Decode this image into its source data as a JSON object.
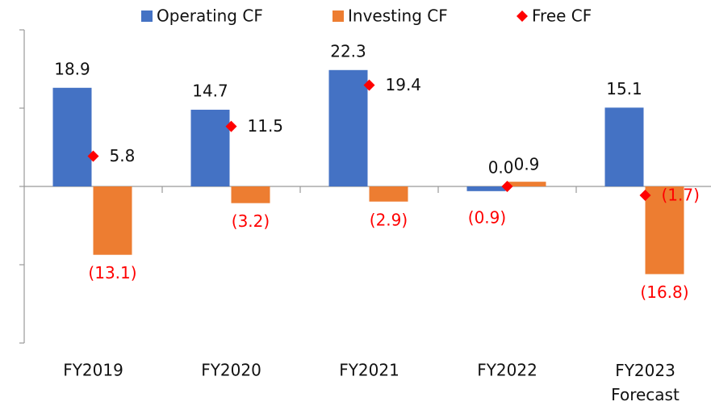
{
  "chart_data": {
    "type": "bar",
    "categories": [
      "FY2019",
      "FY2020",
      "FY2021",
      "FY2022",
      "FY2023\nForecast"
    ],
    "series": [
      {
        "name": "Operating CF",
        "color": "#4472c4",
        "values": [
          18.9,
          14.7,
          22.3,
          -0.9,
          15.1
        ],
        "value_labels": [
          "18.9",
          "14.7",
          "22.3",
          "(0.9)",
          "15.1"
        ]
      },
      {
        "name": "Investing CF",
        "color": "#ed7d31",
        "values": [
          -13.1,
          -3.2,
          -2.9,
          0.9,
          -16.8
        ],
        "value_labels": [
          "(13.1)",
          "(3.2)",
          "(2.9)",
          "0.9",
          "(16.8)"
        ]
      },
      {
        "name": "Free CF",
        "type": "scatter",
        "color": "#ff0000",
        "values": [
          5.8,
          11.5,
          19.4,
          0.0,
          -1.7
        ],
        "value_labels": [
          "5.8",
          "11.5",
          "19.4",
          "0.0",
          "(1.7)"
        ]
      }
    ],
    "negative_label_color": "#ff0000",
    "ylim": [
      -30,
      30
    ],
    "yticks": [
      -30,
      -15,
      0,
      15,
      30
    ],
    "legend": "top"
  }
}
